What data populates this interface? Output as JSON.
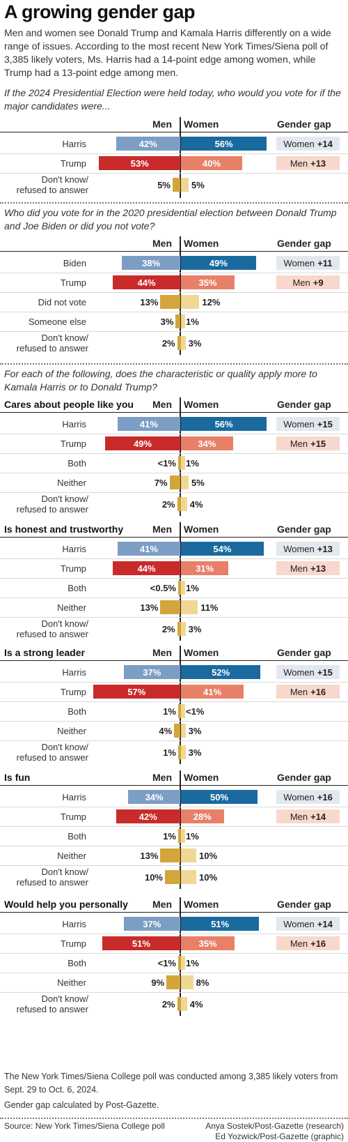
{
  "title": "A growing gender gap",
  "intro": "Men and women see Donald Trump and Kamala Harris differently on a wide range of issues. According to the most recent New York Times/Siena poll of 3,385 likely voters, Ms. Harris had a 14-point edge among women, while Trump had a 13-point edge among men.",
  "questions": [
    "If the 2024 Presidential Election were held today, who would you vote for if the major candidates were...",
    "Who did you vote for in the 2020 presidential election between Donald Trump and Joe Biden or did you not vote?",
    "For each of the following, does the characteristic or quality apply more to Kamala Harris or to Donald Trump?"
  ],
  "headers": {
    "men": "Men",
    "women": "Women",
    "gap": "Gender gap"
  },
  "colors": {
    "harris_men": "#7c9ec4",
    "harris_women": "#1a6aa0",
    "trump_men": "#c92b2b",
    "trump_women": "#e88068",
    "other_men": "#d3a53a",
    "other_women": "#f0d894",
    "gap_women_bg": "#e3e8ef",
    "gap_men_bg": "#f8d8cc"
  },
  "chart_data": [
    {
      "type": "bar",
      "section": "2024 vote",
      "categories": [
        "Harris",
        "Trump",
        "Don't know/ refused to answer"
      ],
      "series": [
        {
          "name": "Men",
          "values": [
            42,
            53,
            5
          ],
          "labels": [
            "42%",
            "53%",
            "5%"
          ]
        },
        {
          "name": "Women",
          "values": [
            56,
            40,
            5
          ],
          "labels": [
            "56%",
            "40%",
            "5%"
          ]
        }
      ],
      "gender_gap": [
        {
          "group": "Women",
          "value": "+14"
        },
        {
          "group": "Men",
          "value": "+13"
        },
        null
      ]
    },
    {
      "type": "bar",
      "section": "2020 vote",
      "categories": [
        "Biden",
        "Trump",
        "Did not vote",
        "Someone else",
        "Don't know/ refused to answer"
      ],
      "series": [
        {
          "name": "Men",
          "values": [
            38,
            44,
            13,
            3,
            2
          ],
          "labels": [
            "38%",
            "44%",
            "13%",
            "3%",
            "2%"
          ]
        },
        {
          "name": "Women",
          "values": [
            49,
            35,
            12,
            1,
            3
          ],
          "labels": [
            "49%",
            "35%",
            "12%",
            "1%",
            "3%"
          ]
        }
      ],
      "gender_gap": [
        {
          "group": "Women",
          "value": "+11"
        },
        {
          "group": "Men",
          "value": "+9"
        },
        null,
        null,
        null
      ]
    },
    {
      "type": "bar",
      "title": "Cares about people like you",
      "categories": [
        "Harris",
        "Trump",
        "Both",
        "Neither",
        "Don't know/ refused to answer"
      ],
      "series": [
        {
          "name": "Men",
          "values": [
            41,
            49,
            0.5,
            7,
            2
          ],
          "labels": [
            "41%",
            "49%",
            "<1%",
            "7%",
            "2%"
          ]
        },
        {
          "name": "Women",
          "values": [
            56,
            34,
            1,
            5,
            4
          ],
          "labels": [
            "56%",
            "34%",
            "1%",
            "5%",
            "4%"
          ]
        }
      ],
      "gender_gap": [
        {
          "group": "Women",
          "value": "+15"
        },
        {
          "group": "Men",
          "value": "+15"
        },
        null,
        null,
        null
      ]
    },
    {
      "type": "bar",
      "title": "Is honest and trustworthy",
      "categories": [
        "Harris",
        "Trump",
        "Both",
        "Neither",
        "Don't know/ refused to answer"
      ],
      "series": [
        {
          "name": "Men",
          "values": [
            41,
            44,
            0.3,
            13,
            2
          ],
          "labels": [
            "41%",
            "44%",
            "<0.5%",
            "13%",
            "2%"
          ]
        },
        {
          "name": "Women",
          "values": [
            54,
            31,
            1,
            11,
            3
          ],
          "labels": [
            "54%",
            "31%",
            "1%",
            "11%",
            "3%"
          ]
        }
      ],
      "gender_gap": [
        {
          "group": "Women",
          "value": "+13"
        },
        {
          "group": "Men",
          "value": "+13"
        },
        null,
        null,
        null
      ]
    },
    {
      "type": "bar",
      "title": "Is a strong leader",
      "categories": [
        "Harris",
        "Trump",
        "Both",
        "Neither",
        "Don't know/ refused to answer"
      ],
      "series": [
        {
          "name": "Men",
          "values": [
            37,
            57,
            1,
            4,
            1
          ],
          "labels": [
            "37%",
            "57%",
            "1%",
            "4%",
            "1%"
          ]
        },
        {
          "name": "Women",
          "values": [
            52,
            41,
            0.5,
            3,
            3
          ],
          "labels": [
            "52%",
            "41%",
            "<1%",
            "3%",
            "3%"
          ]
        }
      ],
      "gender_gap": [
        {
          "group": "Women",
          "value": "+15"
        },
        {
          "group": "Men",
          "value": "+16"
        },
        null,
        null,
        null
      ]
    },
    {
      "type": "bar",
      "title": "Is fun",
      "categories": [
        "Harris",
        "Trump",
        "Both",
        "Neither",
        "Don't know/ refused to answer"
      ],
      "series": [
        {
          "name": "Men",
          "values": [
            34,
            42,
            1,
            13,
            10
          ],
          "labels": [
            "34%",
            "42%",
            "1%",
            "13%",
            "10%"
          ]
        },
        {
          "name": "Women",
          "values": [
            50,
            28,
            1,
            10,
            10
          ],
          "labels": [
            "50%",
            "28%",
            "1%",
            "10%",
            "10%"
          ]
        }
      ],
      "gender_gap": [
        {
          "group": "Women",
          "value": "+16"
        },
        {
          "group": "Men",
          "value": "+14"
        },
        null,
        null,
        null
      ]
    },
    {
      "type": "bar",
      "title": "Would help you personally",
      "categories": [
        "Harris",
        "Trump",
        "Both",
        "Neither",
        "Don't know/ refused to answer"
      ],
      "series": [
        {
          "name": "Men",
          "values": [
            37,
            51,
            0.5,
            9,
            2
          ],
          "labels": [
            "37%",
            "51%",
            "<1%",
            "9%",
            "2%"
          ]
        },
        {
          "name": "Women",
          "values": [
            51,
            35,
            1,
            8,
            4
          ],
          "labels": [
            "51%",
            "35%",
            "1%",
            "8%",
            "4%"
          ]
        }
      ],
      "gender_gap": [
        {
          "group": "Women",
          "value": "+14"
        },
        {
          "group": "Men",
          "value": "+16"
        },
        null,
        null,
        null
      ]
    }
  ],
  "notes": [
    "The New York Times/Siena College poll was conducted among 3,385 likely voters from Sept. 29 to Oct. 6, 2024.",
    "Gender gap calculated by Post-Gazette."
  ],
  "footer": {
    "source": "Source: New York Times/Siena College poll",
    "credit_research": "Anya Sostek/Post-Gazette (research)",
    "credit_graphic": "Ed Yozwick/Post-Gazette (graphic)"
  }
}
